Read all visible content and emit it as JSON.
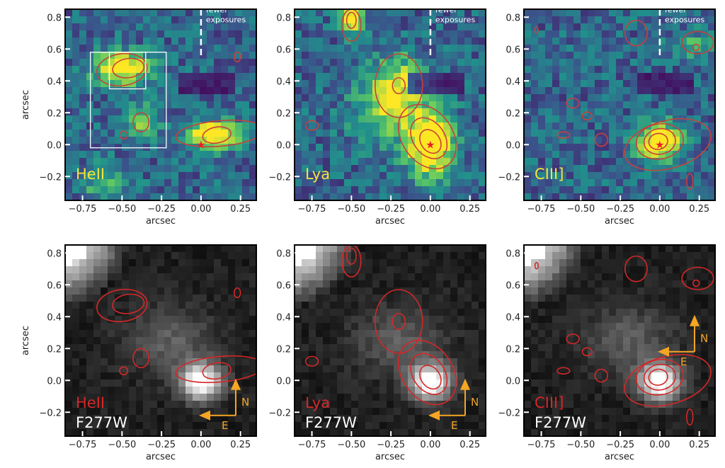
{
  "chart_data": {
    "type": "heatmap",
    "panel_grid": "2 rows x 3 columns",
    "xlabel": "arcsec",
    "ylabel": "arcsec",
    "xlim": [
      -0.86,
      0.35
    ],
    "ylim": [
      -0.35,
      0.85
    ],
    "xticks": [
      -0.75,
      -0.5,
      -0.25,
      0.0,
      0.25
    ],
    "xtick_labels": [
      "−0.75",
      "−0.50",
      "−0.25",
      "0.00",
      "0.25"
    ],
    "yticks": [
      -0.2,
      0.0,
      0.2,
      0.4,
      0.6,
      0.8
    ],
    "ytick_labels": [
      "−0.2",
      "0.0",
      "0.2",
      "0.4",
      "0.6",
      "0.8"
    ],
    "annotation_fewer": [
      "fewer",
      "exposures"
    ],
    "compass": {
      "north": "N",
      "east": "E",
      "color": "#f5a623"
    },
    "colors": {
      "contour": "#d62728",
      "line_label": "#f4e43a",
      "line_label_bottom": "#d62728",
      "filter_label": "#ffffff"
    },
    "panels": [
      {
        "row": "top",
        "colormap": "viridis",
        "line": "HeII",
        "marker": "star at (0,0)",
        "boxes": "two white rectangles",
        "fewer_exposures_x": 0.0
      },
      {
        "row": "top",
        "colormap": "viridis",
        "line": "Lya",
        "marker": "star at (0,0)",
        "fewer_exposures_x": 0.0
      },
      {
        "row": "top",
        "colormap": "viridis",
        "line": "CIII]",
        "marker": "star at (0,0)",
        "fewer_exposures_x": 0.0
      },
      {
        "row": "bottom",
        "colormap": "gray",
        "line": "HeII",
        "filter": "F277W",
        "contours_of": "HeII"
      },
      {
        "row": "bottom",
        "colormap": "gray",
        "line": "Lya",
        "filter": "F277W",
        "contours_of": "Lya"
      },
      {
        "row": "bottom",
        "colormap": "gray",
        "line": "CIII]",
        "filter": "F277W",
        "contours_of": "CIII]"
      }
    ]
  }
}
